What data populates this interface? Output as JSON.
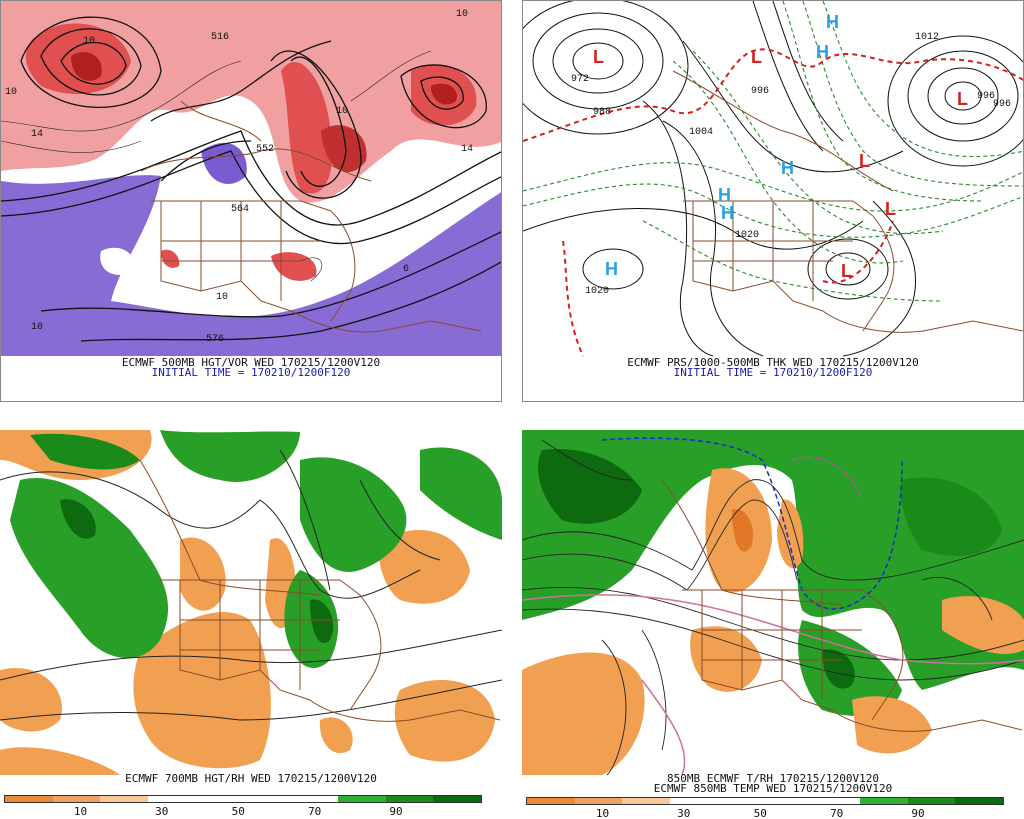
{
  "panels": {
    "p500": {
      "title": "ECMWF 500MB HGT/VOR WED 170215/1200V120",
      "subtitle": "INITIAL TIME = 170210/1200F120",
      "labels": [
        "10",
        "516",
        "10",
        "10",
        "552",
        "14",
        "564",
        "576",
        "10",
        "10",
        "10",
        "14",
        "6"
      ]
    },
    "pmsl": {
      "title": "ECMWF PRS/1000-500MB THK WED 170215/1200V120",
      "subtitle": "INITIAL TIME = 170210/1200F120",
      "highs": [
        "H",
        "H",
        "H",
        "H",
        "H",
        "H"
      ],
      "lows": [
        "L",
        "L",
        "L",
        "L",
        "L",
        "L"
      ],
      "labels": [
        "972",
        "988",
        "996",
        "1004",
        "1012",
        "1020",
        "1020",
        "996",
        "996"
      ]
    },
    "p700": {
      "title": "ECMWF 700MB HGT/RH WED 170215/1200V120",
      "scale_ticks": [
        "10",
        "30",
        "50",
        "70",
        "90"
      ]
    },
    "p850": {
      "title1": "850MB ECMWF T/RH 170215/1200V120",
      "title2": "ECMWF 850MB TEMP WED 170215/1200V120",
      "scale_ticks": [
        "10",
        "30",
        "50",
        "70",
        "90"
      ]
    }
  },
  "colors": {
    "vort_red": "#e85050",
    "vort_purple": "#7a5cd0",
    "rh_green": "#1aa01a",
    "rh_orange": "#f0a050",
    "border_brown": "#8a4a2a",
    "hi_blue": "#2aa0e0",
    "lo_red": "#d42020"
  }
}
